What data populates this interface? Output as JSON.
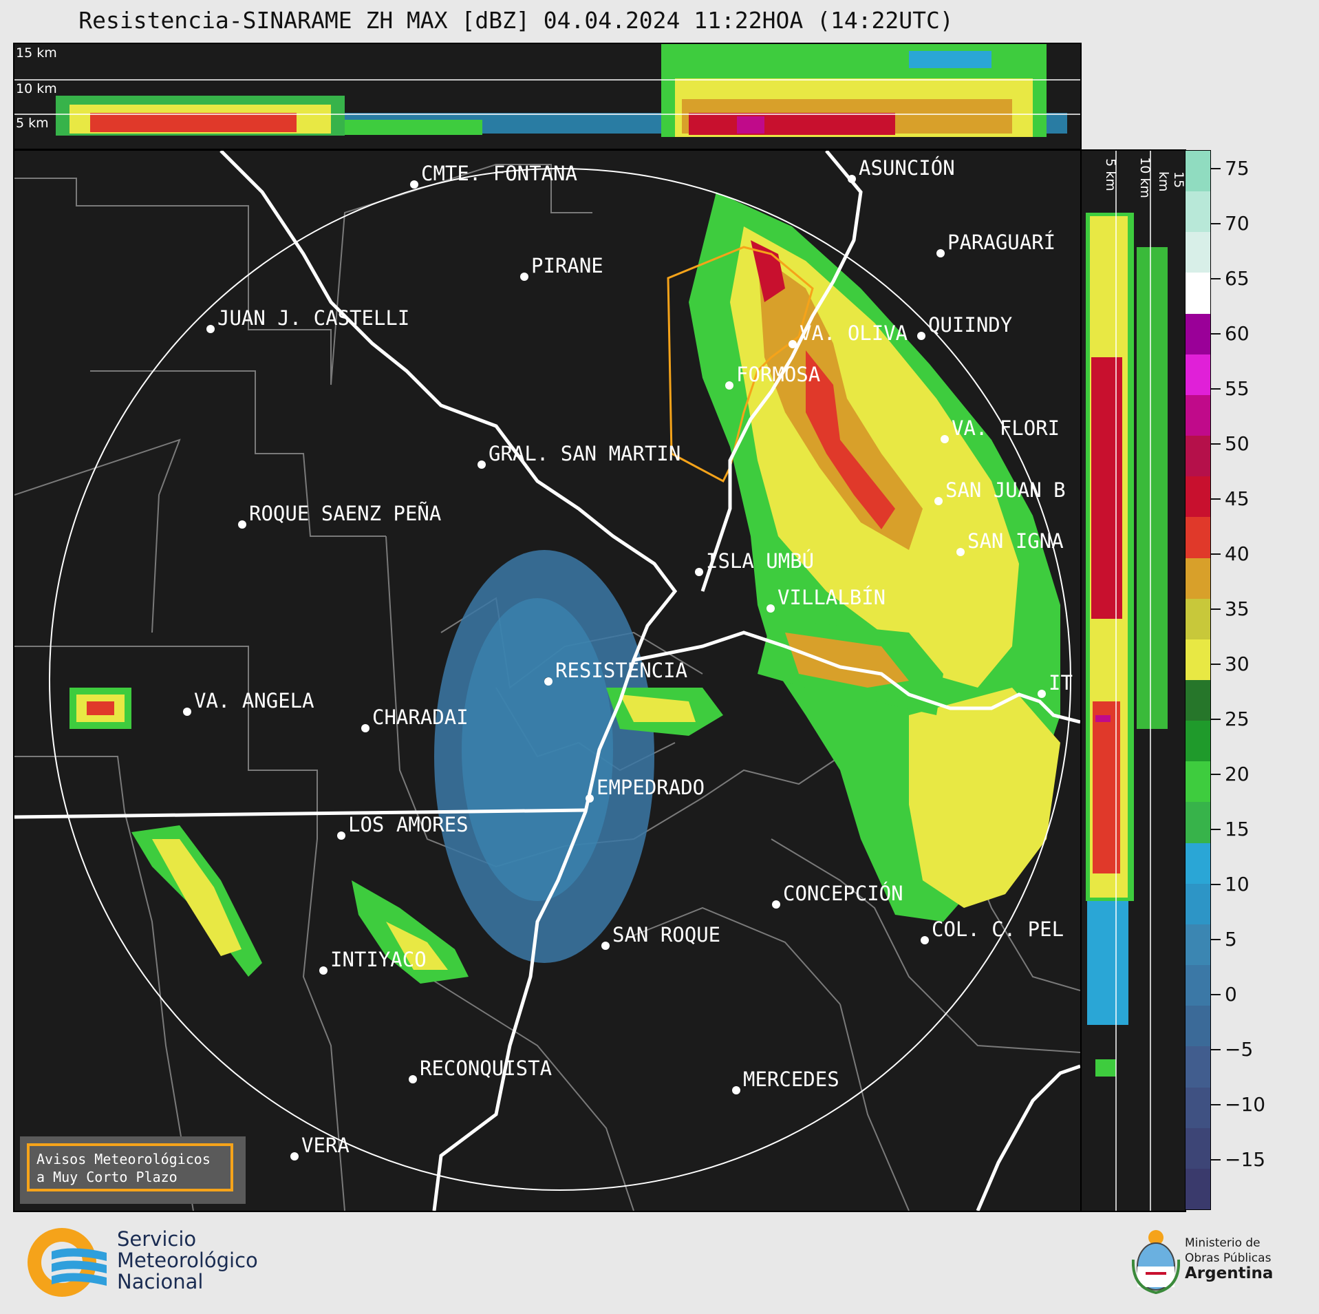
{
  "title": "Resistencia-SINARAME ZH MAX [dBZ] 04.04.2024 11:22HOA (14:22UTC)",
  "top_panel": {
    "height_labels": [
      "15 km",
      "10 km",
      "5 km"
    ]
  },
  "side_panel": {
    "height_labels": [
      "5 km",
      "10 km",
      "15 km"
    ]
  },
  "colorbar": {
    "unit": "dBZ",
    "tick_labels": [
      "75",
      "70",
      "65",
      "60",
      "55",
      "50",
      "45",
      "40",
      "35",
      "30",
      "25",
      "20",
      "15",
      "10",
      "5",
      "0",
      "−5",
      "−10",
      "−15"
    ],
    "colors": [
      "#3a3a6c",
      "#3d4576",
      "#3f5182",
      "#415d8e",
      "#3b6a98",
      "#3b78a6",
      "#3b86b2",
      "#2d95c6",
      "#2aa6d6",
      "#37b34a",
      "#3ecc3e",
      "#1f9a2b",
      "#26762a",
      "#e8e844",
      "#c8c83a",
      "#d8a02a",
      "#e0392a",
      "#c8102e",
      "#b5104a",
      "#c00a8a",
      "#e020d8",
      "#9a0098",
      "#ffffff",
      "#d8efe8",
      "#b8e8d8",
      "#90dcc0"
    ]
  },
  "cities": [
    {
      "name": "CMTE. FONTANA"
    },
    {
      "name": "ASUNCIÓN"
    },
    {
      "name": "PARAGUARÍ"
    },
    {
      "name": "PIRANE"
    },
    {
      "name": "JUAN J. CASTELLI"
    },
    {
      "name": "VA. OLIVA"
    },
    {
      "name": "QUIINDY"
    },
    {
      "name": "FORMOSA"
    },
    {
      "name": "VA. FLORI"
    },
    {
      "name": "GRAL. SAN MARTIN"
    },
    {
      "name": "SAN JUAN B"
    },
    {
      "name": "ROQUE SAENZ PEÑA"
    },
    {
      "name": "SAN IGNA"
    },
    {
      "name": "ISLA UMBÚ"
    },
    {
      "name": "VILLALBÍN"
    },
    {
      "name": "RESISTENCIA"
    },
    {
      "name": "IT"
    },
    {
      "name": "VA. ANGELA"
    },
    {
      "name": "CHARADAI"
    },
    {
      "name": "EMPEDRADO"
    },
    {
      "name": "LOS AMORES"
    },
    {
      "name": "CONCEPCIÓN"
    },
    {
      "name": "SAN ROQUE"
    },
    {
      "name": "COL. C. PEL"
    },
    {
      "name": "INTIYACO"
    },
    {
      "name": "RECONQUISTA"
    },
    {
      "name": "MERCEDES"
    },
    {
      "name": "VERA"
    }
  ],
  "warning_box": {
    "line1": "Avisos Meteorológicos",
    "line2": "a Muy Corto Plazo"
  },
  "footer": {
    "smn_line1": "Servicio",
    "smn_line2": "Meteorológico",
    "smn_line3": "Nacional",
    "ministry_line1": "Ministerio de",
    "ministry_line2": "Obras Públicas",
    "ministry_line3": "Argentina"
  }
}
